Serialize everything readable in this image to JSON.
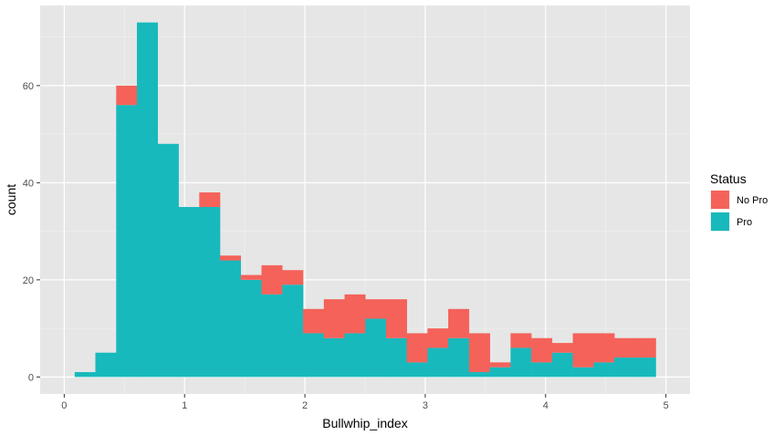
{
  "chart_data": {
    "type": "bar",
    "subtype": "stacked-histogram",
    "xlabel": "Bullwhip_index",
    "ylabel": "count",
    "xlim": [
      -0.2,
      5.2
    ],
    "ylim": [
      -3.5,
      76.5
    ],
    "x_ticks": [
      0,
      1,
      2,
      3,
      4,
      5
    ],
    "y_ticks": [
      0,
      20,
      40,
      60
    ],
    "bin_width": 0.1724,
    "bin_starts": [
      0.087,
      0.259,
      0.432,
      0.604,
      0.777,
      0.949,
      1.122,
      1.294,
      1.467,
      1.639,
      1.812,
      1.984,
      2.157,
      2.329,
      2.502,
      2.674,
      2.846,
      3.019,
      3.191,
      3.364,
      3.536,
      3.709,
      3.881,
      4.054,
      4.226,
      4.399,
      4.571,
      4.743
    ],
    "series": [
      {
        "name": "Pro",
        "color": "#17b9bc",
        "values": [
          1,
          5,
          56,
          73,
          48,
          35,
          35,
          24,
          20,
          17,
          19,
          9,
          8,
          9,
          12,
          8,
          3,
          6,
          8,
          1,
          2,
          6,
          3,
          5,
          2,
          3,
          4,
          4
        ]
      },
      {
        "name": "No Pro",
        "color": "#f4625a",
        "values": [
          0,
          0,
          4,
          0,
          0,
          0,
          3,
          1,
          1,
          6,
          3,
          5,
          8,
          8,
          4,
          8,
          6,
          4,
          6,
          8,
          1,
          3,
          5,
          2,
          7,
          6,
          4,
          4
        ]
      }
    ],
    "legend": {
      "title": "Status",
      "placement": "right",
      "entries": [
        "No Pro",
        "Pro"
      ]
    },
    "grid": true,
    "background": "#e6e6e6",
    "gridline_color": "#ffffff"
  }
}
